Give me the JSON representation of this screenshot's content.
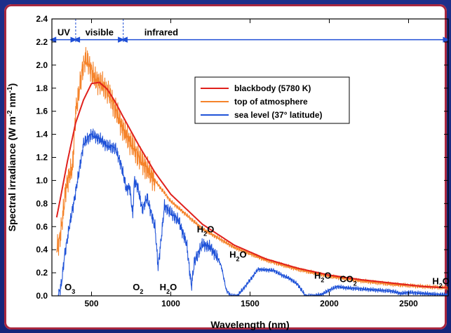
{
  "chart_data": {
    "type": "line",
    "title": "",
    "xlabel": "Wavelength (nm)",
    "ylabel": "Spectral irradiance (W m",
    "ylabel_sup1": "-2",
    "ylabel_mid": " nm",
    "ylabel_sup2": "-1",
    "ylabel_end": ")",
    "xlim": [
      250,
      2750
    ],
    "ylim": [
      0,
      2.4
    ],
    "xticks": [
      500,
      1000,
      1500,
      2000,
      2500
    ],
    "yticks": [
      "0.0",
      "0.2",
      "0.4",
      "0.6",
      "0.8",
      "1.0",
      "1.2",
      "1.4",
      "1.6",
      "1.8",
      "2.0",
      "2.2",
      "2.4"
    ],
    "grid": false,
    "legend_position": "top-right",
    "bands": [
      {
        "label": "UV",
        "from": 250,
        "to": 400
      },
      {
        "label": "visible",
        "from": 400,
        "to": 700
      },
      {
        "label": "infrared",
        "from": 700,
        "to": 2750
      }
    ],
    "series": [
      {
        "name": "blackbody (5780 K)",
        "color": "#e0201c",
        "x": [
          280,
          300,
          350,
          400,
          450,
          500,
          550,
          600,
          650,
          700,
          800,
          900,
          1000,
          1200,
          1400,
          1600,
          1800,
          2000,
          2200,
          2400,
          2600,
          2750
        ],
        "y": [
          0.68,
          0.82,
          1.18,
          1.5,
          1.7,
          1.84,
          1.85,
          1.79,
          1.68,
          1.55,
          1.3,
          1.07,
          0.88,
          0.62,
          0.44,
          0.32,
          0.24,
          0.18,
          0.14,
          0.11,
          0.08,
          0.07
        ]
      },
      {
        "name": "top of atmosphere",
        "color": "#f5832a",
        "x": [
          280,
          300,
          320,
          340,
          360,
          380,
          400,
          420,
          440,
          460,
          480,
          500,
          520,
          540,
          560,
          600,
          650,
          700,
          800,
          900,
          1000,
          1200,
          1400,
          1600,
          1800,
          2000,
          2200,
          2400,
          2600,
          2750
        ],
        "y": [
          0.4,
          0.5,
          0.7,
          0.95,
          1.05,
          1.1,
          1.6,
          1.75,
          1.95,
          2.05,
          2.02,
          1.95,
          1.88,
          1.86,
          1.84,
          1.78,
          1.62,
          1.44,
          1.2,
          1.0,
          0.82,
          0.58,
          0.42,
          0.31,
          0.23,
          0.17,
          0.13,
          0.1,
          0.08,
          0.07
        ]
      },
      {
        "name": "sea level (37° latitude)",
        "color": "#2053d8",
        "x": [
          290,
          310,
          330,
          360,
          400,
          450,
          500,
          550,
          600,
          650,
          690,
          700,
          720,
          740,
          760,
          770,
          790,
          820,
          850,
          900,
          920,
          940,
          960,
          1000,
          1050,
          1100,
          1130,
          1150,
          1200,
          1250,
          1300,
          1320,
          1350,
          1380,
          1420,
          1480,
          1550,
          1650,
          1700,
          1750,
          1800,
          1850,
          1900,
          1950,
          2000,
          2050,
          2100,
          2200,
          2300,
          2400,
          2450,
          2500,
          2600,
          2700,
          2750
        ],
        "y": [
          0.0,
          0.1,
          0.35,
          0.6,
          0.9,
          1.32,
          1.4,
          1.36,
          1.3,
          1.28,
          1.12,
          1.05,
          0.92,
          0.95,
          0.7,
          1.0,
          0.95,
          0.75,
          0.85,
          0.6,
          0.25,
          0.5,
          0.78,
          0.72,
          0.65,
          0.45,
          0.08,
          0.3,
          0.45,
          0.42,
          0.32,
          0.25,
          0.05,
          0.0,
          0.0,
          0.1,
          0.23,
          0.22,
          0.18,
          0.15,
          0.1,
          0.0,
          0.0,
          0.01,
          0.05,
          0.08,
          0.07,
          0.06,
          0.05,
          0.04,
          0.02,
          0.03,
          0.02,
          0.01,
          0.01
        ]
      }
    ],
    "annotations": [
      {
        "id": "o3",
        "main": "O",
        "sub": "3",
        "x": 330,
        "y": 0.05
      },
      {
        "id": "o2",
        "main": "O",
        "sub": "2",
        "x": 760,
        "y": 0.05
      },
      {
        "id": "h2o-940",
        "main": "H",
        "sub": "2",
        "tail": "O",
        "x": 930,
        "y": 0.05
      },
      {
        "id": "h2o-1100",
        "main": "H",
        "sub": "2",
        "tail": "O",
        "x": 1165,
        "y": 0.55
      },
      {
        "id": "h2o-1400",
        "main": "H",
        "sub": "2",
        "tail": "O",
        "x": 1370,
        "y": 0.33
      },
      {
        "id": "h2o-1900",
        "main": "H",
        "sub": "2",
        "tail": "O",
        "x": 1905,
        "y": 0.15
      },
      {
        "id": "co2",
        "main": "CO",
        "sub": "2",
        "x": 2065,
        "y": 0.12
      },
      {
        "id": "h2o-2600",
        "main": "H",
        "sub": "2",
        "tail": "O",
        "x": 2650,
        "y": 0.1
      }
    ]
  }
}
